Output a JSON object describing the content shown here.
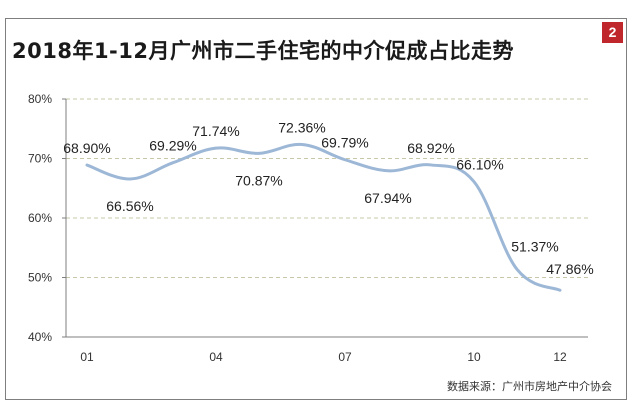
{
  "header": {
    "title": "2018年1-12月广州市二手住宅的中介促成占比走势",
    "badge": "2",
    "source": "数据来源：广州市房地产中介协会"
  },
  "chart_data": {
    "type": "line",
    "title": "2018年1-12月广州市二手住宅的中介促成占比走势",
    "x_months": [
      1,
      2,
      3,
      4,
      5,
      6,
      7,
      8,
      9,
      10,
      11,
      12
    ],
    "x_tick_labels": [
      "01",
      "04",
      "07",
      "10",
      "12"
    ],
    "x_tick_months": [
      1,
      4,
      7,
      10,
      12
    ],
    "values": [
      68.9,
      66.56,
      69.29,
      71.74,
      70.87,
      72.36,
      69.79,
      67.94,
      68.92,
      66.1,
      51.37,
      47.86
    ],
    "value_labels": [
      "68.90%",
      "66.56%",
      "69.29%",
      "71.74%",
      "70.87%",
      "72.36%",
      "69.79%",
      "67.94%",
      "68.92%",
      "66.10%",
      "51.37%",
      "47.86%"
    ],
    "y_ticks": [
      "40%",
      "50%",
      "60%",
      "70%",
      "80%"
    ],
    "ylim": [
      40,
      80
    ],
    "grid": true,
    "line_color": "#9db7d6",
    "grid_color": "#c8c8a8"
  }
}
